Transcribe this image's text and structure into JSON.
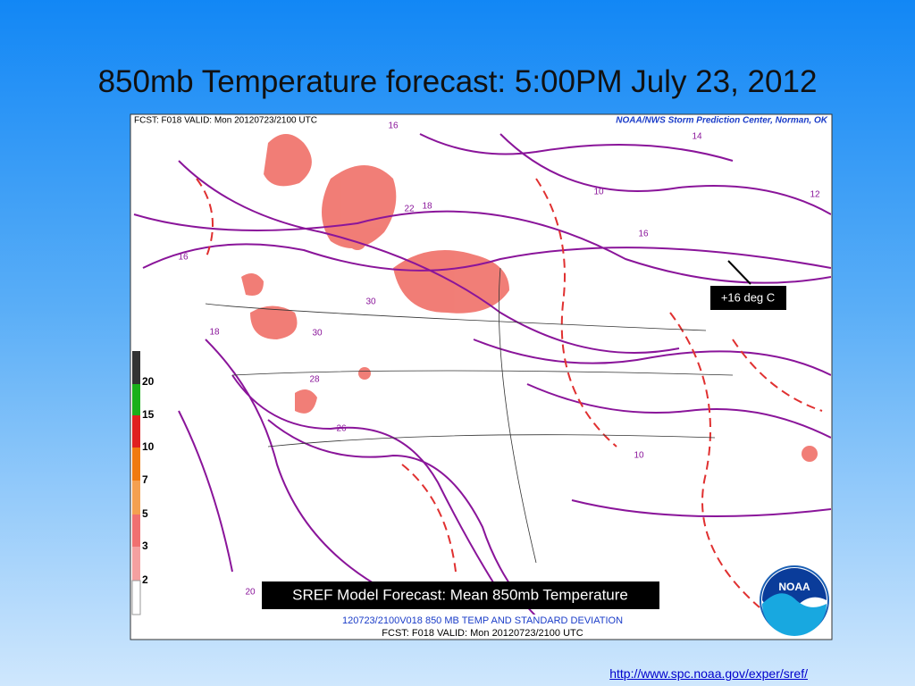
{
  "title": "850mb Temperature forecast: 5:00PM July 23, 2012",
  "map": {
    "header_left": "FCST: F018  VALID: Mon  20120723/2100 UTC",
    "header_right": "NOAA/NWS Storm Prediction Center, Norman, OK",
    "footer_line1": "120723/2100V018 850 MB TEMP AND STANDARD DEVIATION",
    "footer_line2": "FCST: F018  VALID: Mon  20120723/2100 UTC",
    "legend_labels": [
      "20",
      "15",
      "10",
      "7",
      "5",
      "3",
      "2"
    ],
    "contour_labels": [
      "16",
      "14",
      "12",
      "10",
      "16",
      "18",
      "30",
      "30",
      "28",
      "26",
      "20",
      "18",
      "22",
      "16",
      "10"
    ]
  },
  "annotation": "+16 deg C",
  "caption": "SREF Model Forecast: Mean 850mb Temperature",
  "logo": "NOAA",
  "source_link": "http://www.spc.noaa.gov/exper/sref/"
}
